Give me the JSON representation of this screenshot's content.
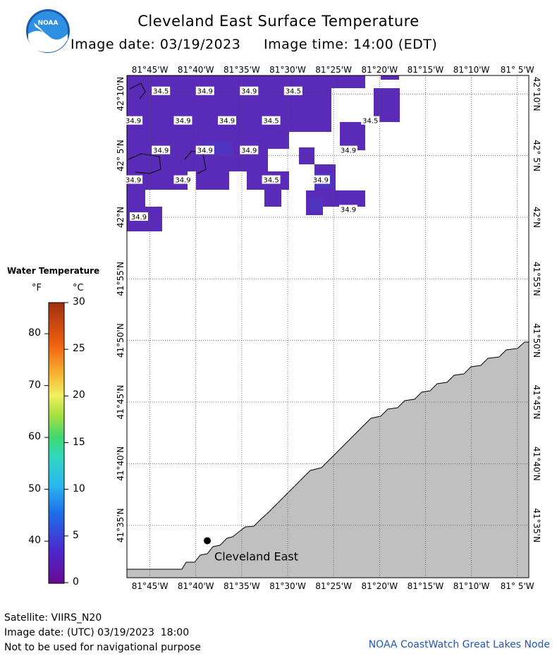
{
  "header": {
    "title": "Cleveland East Surface Temperature",
    "image_date_label": "Image date: 03/19/2023",
    "image_time_label": "Image time: 14:00 (EDT)"
  },
  "logo": {
    "text": "NOAA",
    "icon": "noaa-logo-icon"
  },
  "legend": {
    "title": "Water Temperature",
    "unit_f": "°F",
    "unit_c": "°C",
    "f_ticks": [
      {
        "label": "80",
        "value": 80
      },
      {
        "label": "70",
        "value": 70
      },
      {
        "label": "60",
        "value": 60
      },
      {
        "label": "50",
        "value": 50
      },
      {
        "label": "40",
        "value": 40
      }
    ],
    "c_ticks": [
      {
        "label": "30",
        "value": 30
      },
      {
        "label": "25",
        "value": 25
      },
      {
        "label": "20",
        "value": 20
      },
      {
        "label": "15",
        "value": 15
      },
      {
        "label": "10",
        "value": 10
      },
      {
        "label": "5",
        "value": 5
      },
      {
        "label": "0",
        "value": 0
      }
    ],
    "range_c": [
      0,
      30
    ]
  },
  "map": {
    "lon_labels": [
      "81°45'W",
      "81°40'W",
      "81°35'W",
      "81°30'W",
      "81°25'W",
      "81°20'W",
      "81°15'W",
      "81°10'W",
      "81° 5'W"
    ],
    "lon_values": [
      -81.75,
      -81.6667,
      -81.5833,
      -81.5,
      -81.4167,
      -81.3333,
      -81.25,
      -81.1667,
      -81.0833
    ],
    "lat_labels": [
      "42°10'N",
      "42° 5'N",
      "42°N",
      "41°55'N",
      "41°50'N",
      "41°45'N",
      "41°40'N",
      "41°35'N"
    ],
    "lat_values": [
      42.1667,
      42.0833,
      42.0,
      41.9167,
      41.8333,
      41.75,
      41.6667,
      41.5833
    ],
    "lon_range": [
      -81.7917,
      -81.0625
    ],
    "lat_range": [
      41.5125,
      42.1917
    ],
    "station": {
      "label": "Cleveland East",
      "lat": 41.5625,
      "lon": -81.6458
    },
    "water_color": "#5a2ab8",
    "land_color": "#c0c0c0",
    "temperature_labels": [
      {
        "text": "34.5",
        "lat": 42.17,
        "lon": -81.73
      },
      {
        "text": "34.9",
        "lat": 42.17,
        "lon": -81.65
      },
      {
        "text": "34.9",
        "lat": 42.17,
        "lon": -81.57
      },
      {
        "text": "34.5",
        "lat": 42.17,
        "lon": -81.49
      },
      {
        "text": "34.9",
        "lat": 42.13,
        "lon": -81.78
      },
      {
        "text": "34.9",
        "lat": 42.13,
        "lon": -81.69
      },
      {
        "text": "34.9",
        "lat": 42.13,
        "lon": -81.61
      },
      {
        "text": "34.5",
        "lat": 42.13,
        "lon": -81.53
      },
      {
        "text": "34.5",
        "lat": 42.13,
        "lon": -81.35
      },
      {
        "text": "34.9",
        "lat": 42.09,
        "lon": -81.73
      },
      {
        "text": "34.9",
        "lat": 42.09,
        "lon": -81.65
      },
      {
        "text": "34.9",
        "lat": 42.09,
        "lon": -81.57
      },
      {
        "text": "34.9",
        "lat": 42.09,
        "lon": -81.39
      },
      {
        "text": "34.9",
        "lat": 42.05,
        "lon": -81.78
      },
      {
        "text": "34.9",
        "lat": 42.05,
        "lon": -81.69
      },
      {
        "text": "34.5",
        "lat": 42.05,
        "lon": -81.53
      },
      {
        "text": "34.9",
        "lat": 42.05,
        "lon": -81.44
      },
      {
        "text": "34.9",
        "lat": 42.01,
        "lon": -81.39
      },
      {
        "text": "34.9",
        "lat": 42.0,
        "lon": -81.77
      }
    ]
  },
  "footer": {
    "satellite": "Satellite: VIIRS_N20",
    "utc_date": "Image date: (UTC) 03/19/2023  18:00",
    "disclaimer": "Not to be used for navigational purpose",
    "credit": "NOAA CoastWatch Great Lakes Node"
  }
}
